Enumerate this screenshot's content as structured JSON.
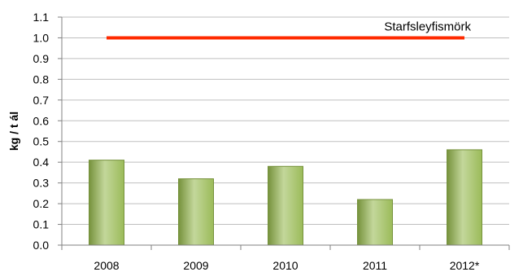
{
  "chart_data": {
    "type": "bar",
    "title": "",
    "xlabel": "",
    "ylabel": "kg / t ál",
    "categories": [
      "2008",
      "2009",
      "2010",
      "2011",
      "2012*"
    ],
    "values": [
      0.41,
      0.32,
      0.38,
      0.22,
      0.46
    ],
    "ylim": [
      0.0,
      1.1
    ],
    "yticks": [
      "0.0",
      "0.1",
      "0.2",
      "0.3",
      "0.4",
      "0.5",
      "0.6",
      "0.7",
      "0.8",
      "0.9",
      "1.0",
      "1.1"
    ],
    "grid": true,
    "reference_line": {
      "label": "Starfsleyfismörk",
      "value": 1.0,
      "from": "2008",
      "to": "2012*"
    },
    "colors": {
      "bar": "#9bbb59",
      "bar_light": "#c3d79b",
      "bar_dark": "#76923c",
      "reference_line": "#ff2a00"
    }
  }
}
